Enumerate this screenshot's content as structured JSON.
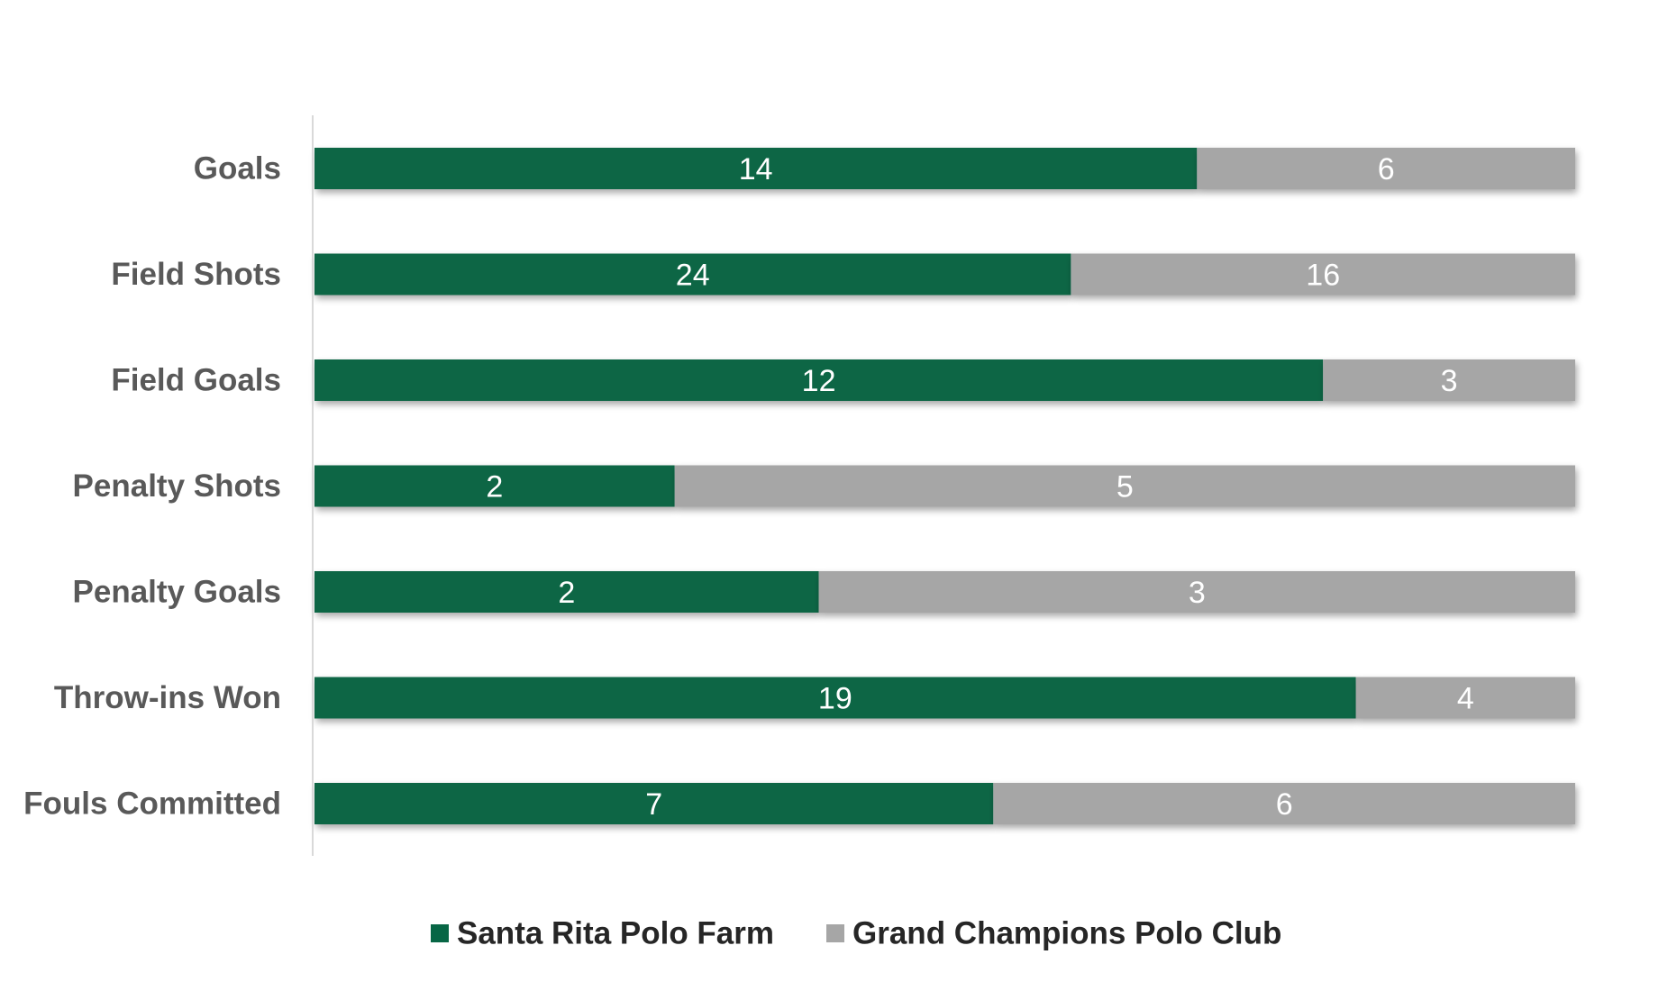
{
  "chart_data": {
    "type": "bar",
    "orientation": "horizontal",
    "stacking": "percent",
    "categories": [
      "Goals",
      "Field Shots",
      "Field Goals",
      "Penalty Shots",
      "Penalty Goals",
      "Throw-ins Won",
      "Fouls Committed"
    ],
    "series": [
      {
        "name": "Santa Rita Polo Farm",
        "values": [
          14,
          24,
          12,
          2,
          2,
          19,
          7
        ],
        "color": "#076645"
      },
      {
        "name": "Grand Champions Polo Club",
        "values": [
          6,
          16,
          3,
          5,
          3,
          4,
          6
        ],
        "color": "#a6a6a6"
      }
    ],
    "data_labels": true,
    "legend_position": "bottom",
    "grid": false,
    "title": "",
    "xlabel": "",
    "ylabel": ""
  }
}
